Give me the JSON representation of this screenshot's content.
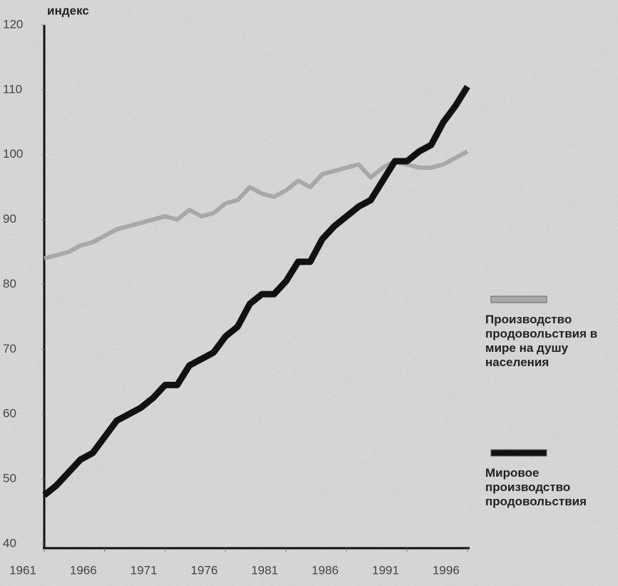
{
  "chart_data": {
    "type": "line",
    "y_label": "индекс",
    "x": [
      1961,
      1962,
      1963,
      1964,
      1965,
      1966,
      1967,
      1968,
      1969,
      1970,
      1971,
      1972,
      1973,
      1974,
      1975,
      1976,
      1977,
      1978,
      1979,
      1980,
      1981,
      1982,
      1983,
      1984,
      1985,
      1986,
      1987,
      1988,
      1989,
      1990,
      1991,
      1992,
      1993,
      1994,
      1995,
      1996
    ],
    "series": [
      {
        "name": "Производство продовольствия в мире на душу населения",
        "color": "#a8a8a8",
        "values": [
          84,
          84.5,
          85,
          86,
          86.5,
          87.5,
          88.5,
          89,
          89.5,
          90,
          90.5,
          90,
          91.5,
          90.5,
          91,
          92.5,
          93,
          95,
          94,
          93.5,
          94.5,
          96,
          95,
          97,
          97.5,
          98,
          98.5,
          96.5,
          98,
          99,
          98.5,
          98,
          98,
          98.5,
          99.5,
          100.5
        ]
      },
      {
        "name": "Мировое производство продовольствия",
        "color": "#111111",
        "values": [
          47.5,
          49,
          51,
          53,
          54,
          56.5,
          59,
          60,
          61,
          62.5,
          64.5,
          64.5,
          67.5,
          68.5,
          69.5,
          72,
          73.5,
          77,
          78.5,
          78.5,
          80.5,
          83.5,
          83.5,
          87,
          89,
          90.5,
          92,
          93,
          96,
          99,
          99,
          100.5,
          101.5,
          105,
          107.5,
          110.5
        ]
      }
    ],
    "xlim": [
      1961,
      1996
    ],
    "xticks": [
      1961,
      1966,
      1971,
      1976,
      1981,
      1986,
      1991,
      1996
    ],
    "ylim": [
      40,
      120
    ],
    "yticks": [
      40,
      50,
      60,
      70,
      80,
      90,
      100,
      110,
      120
    ]
  }
}
